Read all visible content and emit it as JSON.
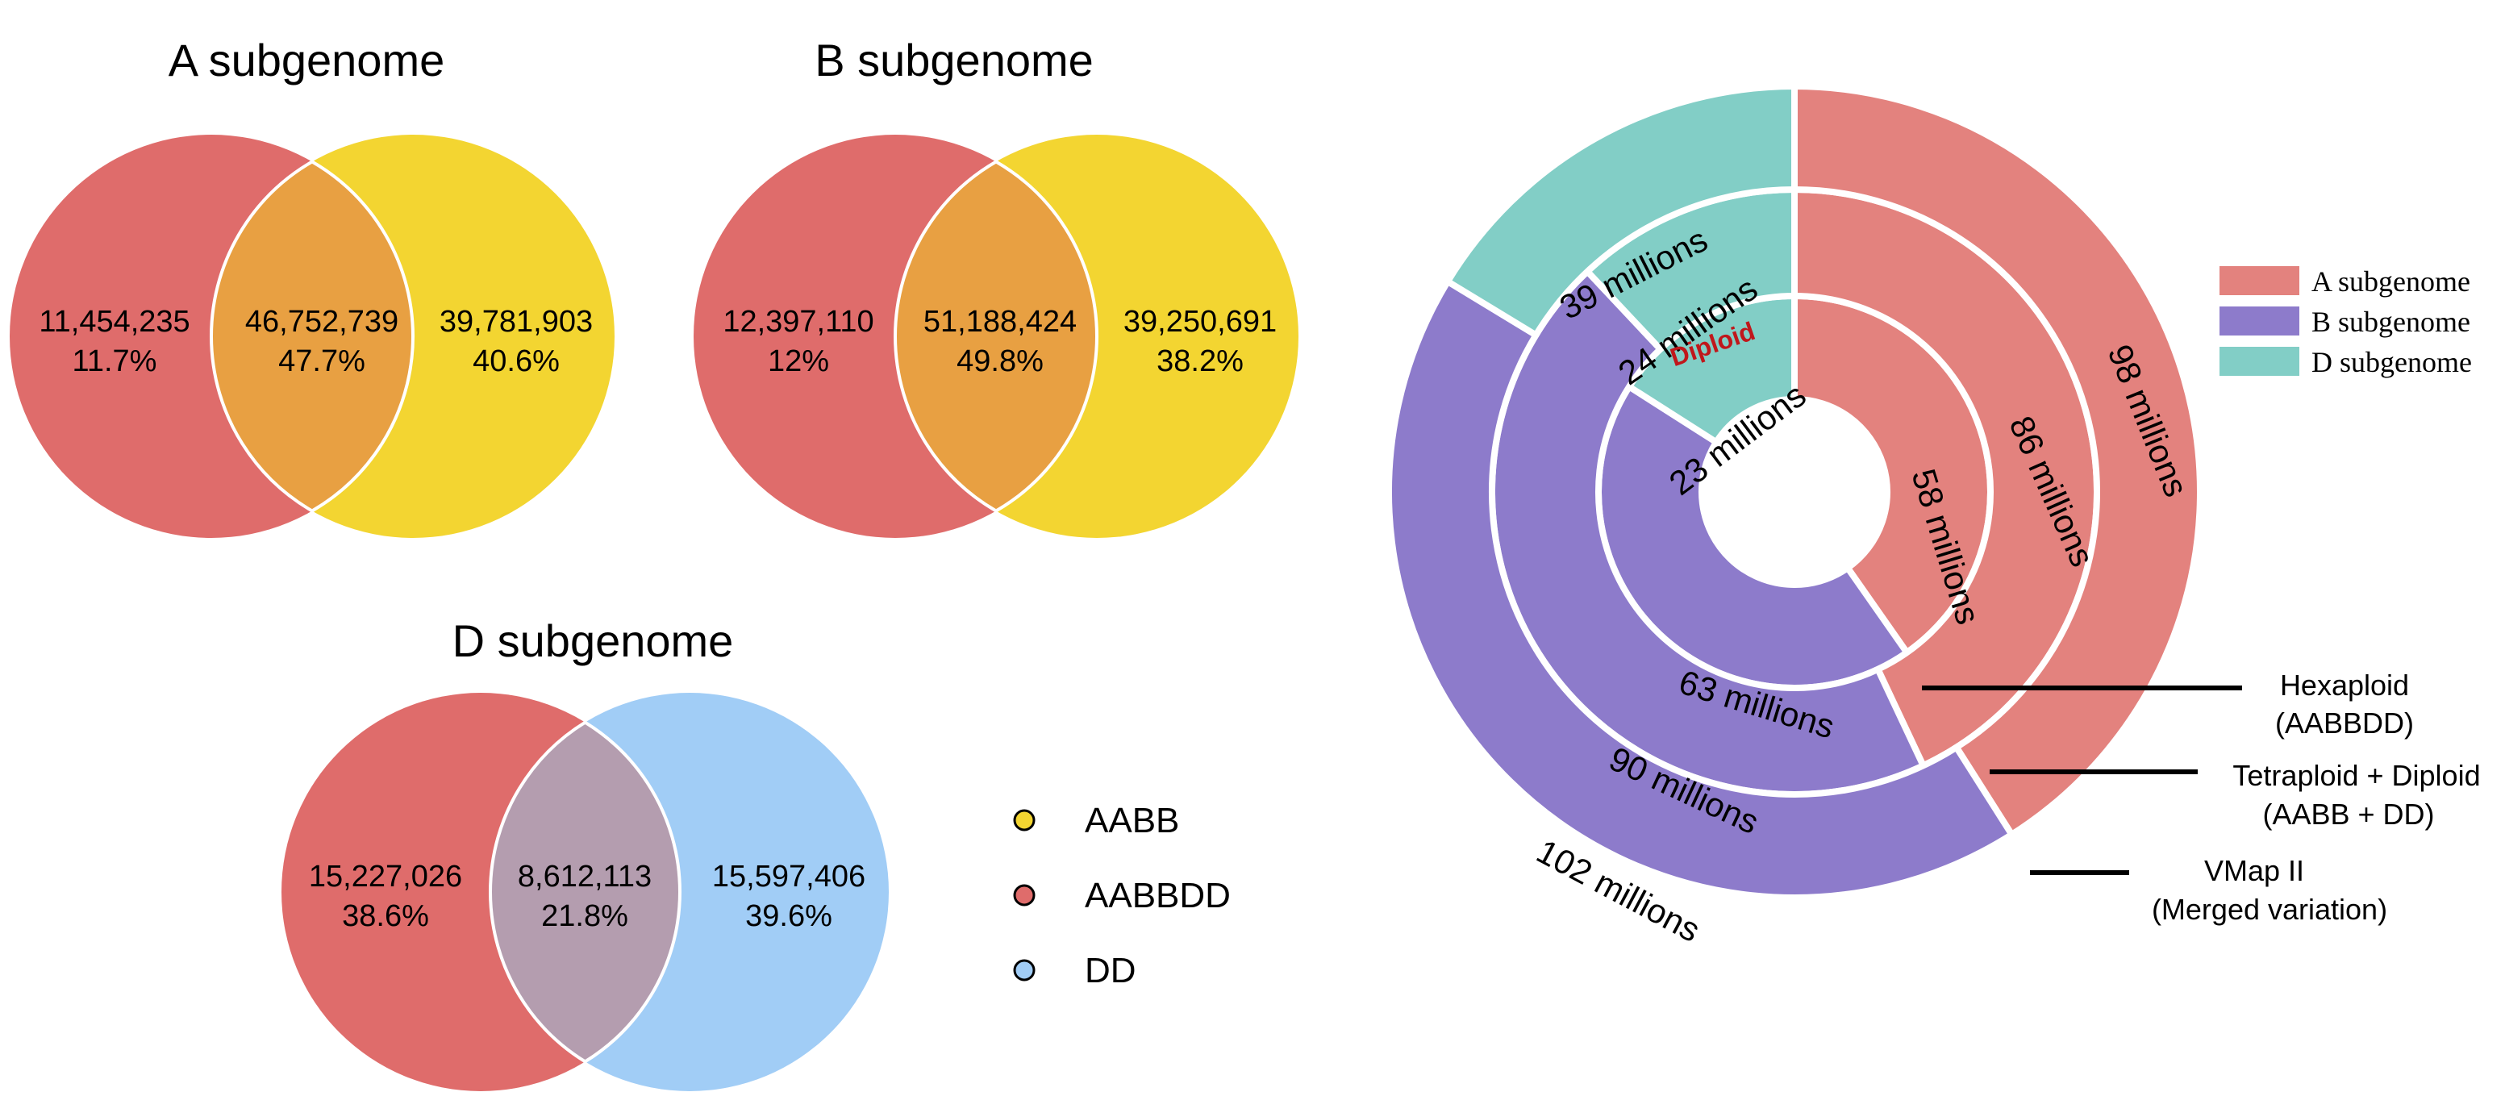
{
  "colors": {
    "AABB": "#f3d531",
    "AABBDD": "#df6c6b",
    "DD": "#a1cdf6",
    "overlap_AB": "#e8a042",
    "overlap_D": "#b49daf",
    "ring_A": "#e3827e",
    "ring_B": "#8d7bcb",
    "ring_D": "#82cec6",
    "diploid_text": "#c0171b"
  },
  "venns": [
    {
      "title": "A subgenome",
      "left": {
        "count": "11,454,235",
        "pct": "11.7%"
      },
      "center": {
        "count": "46,752,739",
        "pct": "47.7%"
      },
      "right": {
        "count": "39,781,903",
        "pct": "40.6%"
      }
    },
    {
      "title": "B subgenome",
      "left": {
        "count": "12,397,110",
        "pct": "12%"
      },
      "center": {
        "count": "51,188,424",
        "pct": "49.8%"
      },
      "right": {
        "count": "39,250,691",
        "pct": "38.2%"
      }
    },
    {
      "title": "D subgenome",
      "left": {
        "count": "15,227,026",
        "pct": "38.6%"
      },
      "center": {
        "count": "8,612,113",
        "pct": "21.8%"
      },
      "right": {
        "count": "15,597,406",
        "pct": "39.6%"
      }
    }
  ],
  "venn_legend": [
    {
      "label": "AABB",
      "color": "#f3d531"
    },
    {
      "label": "AABBDD",
      "color": "#df6c6b"
    },
    {
      "label": "DD",
      "color": "#a1cdf6"
    }
  ],
  "chart_data": [
    {
      "type": "venn",
      "title": "A subgenome",
      "sets": [
        "AABBDD",
        "AABB"
      ],
      "regions": [
        {
          "region": "AABBDD only",
          "value": 11454235,
          "percent": 11.7
        },
        {
          "region": "shared",
          "value": 46752739,
          "percent": 47.7
        },
        {
          "region": "AABB only",
          "value": 39781903,
          "percent": 40.6
        }
      ]
    },
    {
      "type": "venn",
      "title": "B subgenome",
      "sets": [
        "AABBDD",
        "AABB"
      ],
      "regions": [
        {
          "region": "AABBDD only",
          "value": 12397110,
          "percent": 12
        },
        {
          "region": "shared",
          "value": 51188424,
          "percent": 49.8
        },
        {
          "region": "AABB only",
          "value": 39250691,
          "percent": 38.2
        }
      ]
    },
    {
      "type": "venn",
      "title": "D subgenome",
      "sets": [
        "AABBDD",
        "DD"
      ],
      "regions": [
        {
          "region": "AABBDD only",
          "value": 15227026,
          "percent": 38.6
        },
        {
          "region": "shared",
          "value": 8612113,
          "percent": 21.8
        },
        {
          "region": "DD only",
          "value": 15597406,
          "percent": 39.6
        }
      ]
    },
    {
      "type": "pie",
      "subtype": "nested-donut",
      "legend": [
        {
          "label": "A subgenome",
          "color": "#e3827e"
        },
        {
          "label": "B subgenome",
          "color": "#8d7bcb"
        },
        {
          "label": "D subgenome",
          "color": "#82cec6"
        }
      ],
      "legend_position": "top-right",
      "rings": [
        {
          "name": "Hexaploid",
          "sub": "(AABBDD)",
          "slices": [
            {
              "category": "A subgenome",
              "value": 58,
              "label": "58 millions"
            },
            {
              "category": "B subgenome",
              "value": 63,
              "label": "63  millions"
            },
            {
              "category": "D subgenome",
              "value": 23,
              "label": "23 millions"
            }
          ]
        },
        {
          "name": "Tetraploid + Diploid",
          "sub": "(AABB + DD)",
          "slices": [
            {
              "category": "A subgenome",
              "value": 86,
              "label": "86 millions"
            },
            {
              "category": "B subgenome",
              "value": 90,
              "label": "90 millions"
            },
            {
              "category": "D subgenome",
              "value": 24,
              "label": "24 millions",
              "note": "Diploid"
            }
          ]
        },
        {
          "name": "VMap II",
          "sub": "(Merged variation)",
          "slices": [
            {
              "category": "A subgenome",
              "value": 98,
              "label": "98 millions"
            },
            {
              "category": "B subgenome",
              "value": 102,
              "label": "102 millions"
            },
            {
              "category": "D subgenome",
              "value": 39,
              "label": "39 millions"
            }
          ]
        }
      ]
    }
  ]
}
